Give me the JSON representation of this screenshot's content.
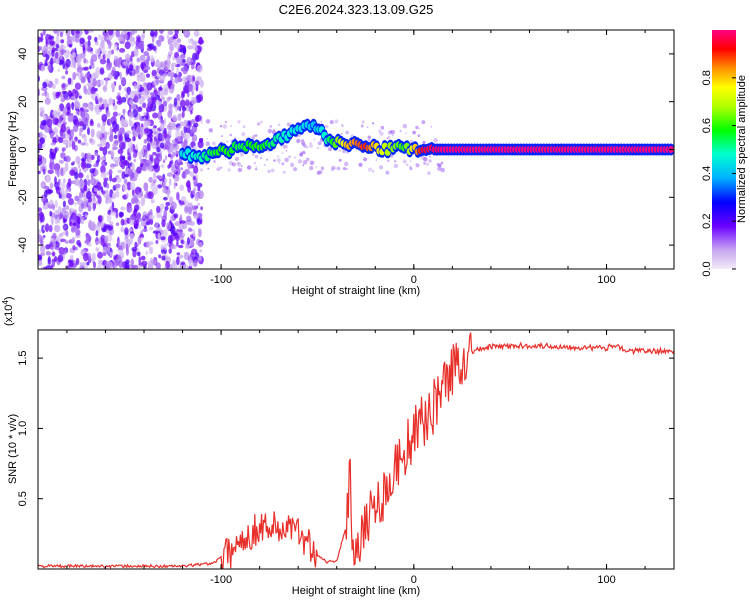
{
  "title": "C2E6.2024.323.13.09.G25",
  "chart_data": [
    {
      "type": "heatmap",
      "xlabel": "Height of straight line (km)",
      "ylabel": "Frequency (Hz)",
      "xlim": [
        -195,
        135
      ],
      "ylim": [
        -50,
        50
      ],
      "xticks": [
        -100,
        0,
        100
      ],
      "yticks": [
        -40,
        -20,
        0,
        20,
        40
      ],
      "colorbar": {
        "label": "Normalized spectral amplitude",
        "range": [
          0,
          1
        ],
        "ticks": [
          0.0,
          0.2,
          0.4,
          0.6,
          0.8
        ],
        "tick_labels": [
          "0.0",
          "0.2",
          "0.4",
          "0.6",
          "0.8"
        ]
      },
      "ridge": [
        {
          "x": -120,
          "y": -2,
          "v": 0.45
        },
        {
          "x": -110,
          "y": -3,
          "v": 0.5
        },
        {
          "x": -100,
          "y": -1,
          "v": 0.6
        },
        {
          "x": -90,
          "y": 1,
          "v": 0.55
        },
        {
          "x": -80,
          "y": 2,
          "v": 0.6
        },
        {
          "x": -70,
          "y": 4,
          "v": 0.5
        },
        {
          "x": -60,
          "y": 8,
          "v": 0.45
        },
        {
          "x": -52,
          "y": 11,
          "v": 0.4
        },
        {
          "x": -45,
          "y": 4,
          "v": 0.5
        },
        {
          "x": -35,
          "y": 3,
          "v": 0.8
        },
        {
          "x": -25,
          "y": 1,
          "v": 0.9
        },
        {
          "x": -15,
          "y": 0,
          "v": 0.7
        },
        {
          "x": -5,
          "y": 1,
          "v": 0.6
        },
        {
          "x": 5,
          "y": 0,
          "v": 0.95
        },
        {
          "x": 15,
          "y": 0,
          "v": 1.0
        },
        {
          "x": 60,
          "y": 0,
          "v": 1.0
        },
        {
          "x": 100,
          "y": 0,
          "v": 1.0
        },
        {
          "x": 135,
          "y": 0,
          "v": 1.0
        }
      ]
    },
    {
      "type": "line",
      "xlabel": "Height of straight line (km)",
      "ylabel": "SNR (10 * v/v)",
      "scale_label": "(x10",
      "scale_exponent": "4",
      "scale_suffix": ")",
      "xlim": [
        -195,
        135
      ],
      "ylim": [
        0,
        1.7
      ],
      "xticks": [
        -100,
        0,
        100
      ],
      "yticks": [
        0.5,
        1.0,
        1.5
      ],
      "ytick_labels": [
        "0.5",
        "1.0",
        "1.5"
      ],
      "series": [
        {
          "name": "SNR",
          "color": "#e8302b",
          "x": [
            -195,
            -120,
            -105,
            -95,
            -90,
            -85,
            -80,
            -75,
            -70,
            -65,
            -60,
            -55,
            -50,
            -45,
            -40,
            -35,
            -33,
            -32,
            -30,
            -28,
            -25,
            -20,
            -15,
            -10,
            -5,
            0,
            5,
            10,
            15,
            20,
            25,
            30,
            40,
            60,
            80,
            100,
            105,
            110,
            120,
            135
          ],
          "y": [
            0.02,
            0.02,
            0.04,
            0.12,
            0.2,
            0.25,
            0.3,
            0.32,
            0.28,
            0.3,
            0.25,
            0.2,
            0.1,
            0.05,
            0.06,
            0.3,
            0.7,
            0.25,
            0.15,
            0.25,
            0.35,
            0.45,
            0.55,
            0.7,
            0.85,
            0.95,
            1.05,
            1.15,
            1.3,
            1.42,
            1.5,
            1.55,
            1.58,
            1.59,
            1.58,
            1.57,
            1.6,
            1.55,
            1.55,
            1.55
          ]
        }
      ]
    }
  ]
}
